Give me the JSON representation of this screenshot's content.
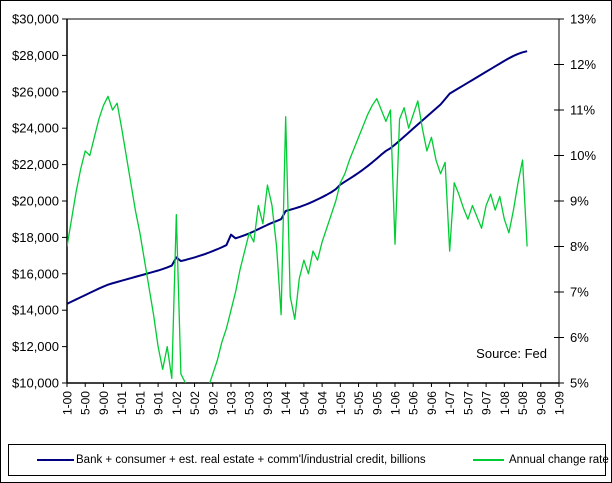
{
  "chart": {
    "source_note": "Source: Fed",
    "left_axis_tick_labels": [
      "$10,000",
      "$12,000",
      "$14,000",
      "$16,000",
      "$18,000",
      "$20,000",
      "$22,000",
      "$24,000",
      "$26,000",
      "$28,000",
      "$30,000"
    ],
    "right_axis_tick_labels": [
      "5%",
      "6%",
      "7%",
      "8%",
      "9%",
      "10%",
      "11%",
      "12%",
      "13%"
    ],
    "x_axis_tick_labels": [
      "1-00",
      "5-00",
      "9-00",
      "1-01",
      "5-01",
      "9-01",
      "1-02",
      "5-02",
      "9-02",
      "1-03",
      "5-03",
      "9-03",
      "1-04",
      "5-04",
      "9-04",
      "1-05",
      "5-05",
      "9-05",
      "1-06",
      "5-06",
      "9-06",
      "1-07",
      "5-07",
      "9-07",
      "1-08",
      "5-08",
      "9-08",
      "1-09"
    ]
  },
  "chart_data": {
    "type": "line",
    "title": "",
    "grid": false,
    "legend_position": "bottom",
    "source_note": "Source: Fed",
    "x_unit": "month-year",
    "x_start": "1-00",
    "x_end": "6-08",
    "frequency": "monthly",
    "x_axis_span": [
      "1-00",
      "1-09"
    ],
    "x_axis_span_months": 108,
    "x_tick_step_months": 4,
    "left_ylim": [
      10000,
      30000
    ],
    "left_tick_step": 2000,
    "right_ylim": [
      5,
      13
    ],
    "right_tick_step": 1,
    "series": [
      {
        "name": "Bank + consumer + est. real estate + comm'l/industrial credit, billions",
        "axis": "left",
        "unit": "$ billions",
        "color": "#000080",
        "values": [
          14350,
          14470,
          14590,
          14710,
          14830,
          14950,
          15070,
          15190,
          15300,
          15400,
          15480,
          15550,
          15620,
          15690,
          15760,
          15830,
          15900,
          15970,
          16040,
          16110,
          16180,
          16260,
          16350,
          16450,
          16900,
          16700,
          16760,
          16830,
          16900,
          16980,
          17060,
          17150,
          17250,
          17350,
          17460,
          17580,
          18150,
          17950,
          18030,
          18120,
          18220,
          18330,
          18450,
          18570,
          18690,
          18800,
          18900,
          19000,
          19450,
          19520,
          19590,
          19670,
          19760,
          19860,
          19970,
          20090,
          20210,
          20340,
          20480,
          20650,
          20900,
          21060,
          21220,
          21380,
          21550,
          21730,
          21920,
          22120,
          22330,
          22550,
          22750,
          22900,
          23100,
          23320,
          23540,
          23760,
          23980,
          24200,
          24420,
          24640,
          24860,
          25080,
          25300,
          25600,
          25900,
          26050,
          26200,
          26350,
          26500,
          26650,
          26800,
          26950,
          27100,
          27250,
          27400,
          27550,
          27700,
          27840,
          27970,
          28080,
          28170,
          28230
        ]
      },
      {
        "name": "Annual change rate",
        "axis": "right",
        "unit": "%",
        "color": "#00cc33",
        "values": [
          8.0,
          8.6,
          9.2,
          9.7,
          10.1,
          10.0,
          10.4,
          10.8,
          11.1,
          11.3,
          11.0,
          11.15,
          10.6,
          10.0,
          9.4,
          8.8,
          8.3,
          7.7,
          7.1,
          6.5,
          5.8,
          5.3,
          5.8,
          5.1,
          8.7,
          5.2,
          5.0,
          4.9,
          4.7,
          4.6,
          4.7,
          4.9,
          5.2,
          5.5,
          5.9,
          6.2,
          6.6,
          7.0,
          7.5,
          7.9,
          8.3,
          8.1,
          8.9,
          8.5,
          9.35,
          8.9,
          8.0,
          6.5,
          10.85,
          6.9,
          6.4,
          7.3,
          7.7,
          7.4,
          7.9,
          7.7,
          8.1,
          8.4,
          8.7,
          9.0,
          9.4,
          9.6,
          9.9,
          10.15,
          10.4,
          10.65,
          10.9,
          11.1,
          11.25,
          11.0,
          10.75,
          11.0,
          8.05,
          10.8,
          11.05,
          10.6,
          10.9,
          11.2,
          10.6,
          10.1,
          10.4,
          9.9,
          9.6,
          9.85,
          7.9,
          9.4,
          9.15,
          8.85,
          8.6,
          8.9,
          8.65,
          8.4,
          8.9,
          9.15,
          8.8,
          9.1,
          8.6,
          8.3,
          8.8,
          9.4,
          9.9,
          8.0
        ]
      }
    ]
  }
}
